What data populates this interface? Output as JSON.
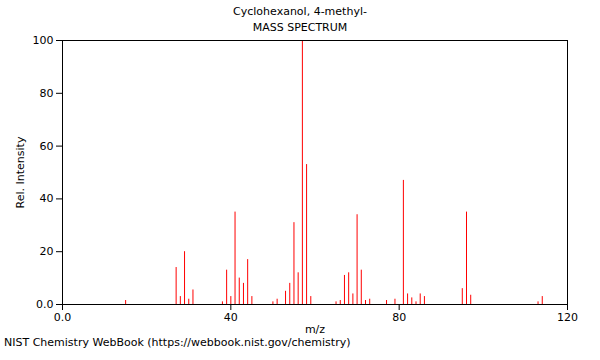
{
  "chart_data": {
    "type": "stick",
    "title": "Cyclohexanol, 4-methyl-",
    "subtitle": "MASS SPECTRUM",
    "caption": "NIST Chemistry WebBook (https://webbook.nist.gov/chemistry)",
    "x_label": "m/z",
    "y_label": "Rel. Intensity",
    "x": [
      15,
      27,
      28,
      29,
      30,
      31,
      38,
      39,
      40,
      41,
      42,
      43,
      44,
      45,
      50,
      51,
      53,
      54,
      55,
      56,
      57,
      58,
      59,
      65,
      66,
      67,
      68,
      69,
      70,
      71,
      72,
      73,
      77,
      79,
      81,
      82,
      83,
      84,
      85,
      86,
      95,
      96,
      97,
      113,
      114
    ],
    "values": [
      1.5,
      14,
      3,
      20,
      2,
      5.5,
      1,
      13,
      3,
      35,
      10,
      8,
      17,
      3,
      1,
      2,
      5,
      8,
      31,
      12,
      100,
      53,
      3,
      1,
      1.5,
      11,
      12,
      4,
      34,
      13,
      1.5,
      2,
      1.5,
      2,
      47,
      4,
      2.5,
      1,
      4,
      3,
      6,
      35,
      3.5,
      1,
      3
    ],
    "color": "#ff0000",
    "xlim": [
      0,
      120
    ],
    "xticks": [
      {
        "value": 0,
        "label": "0.0"
      },
      40,
      80,
      120
    ],
    "ylim": [
      0,
      100
    ],
    "yticks": [
      {
        "value": 0,
        "label": "0.0"
      },
      20,
      40,
      60,
      80,
      100
    ],
    "grid": false
  }
}
